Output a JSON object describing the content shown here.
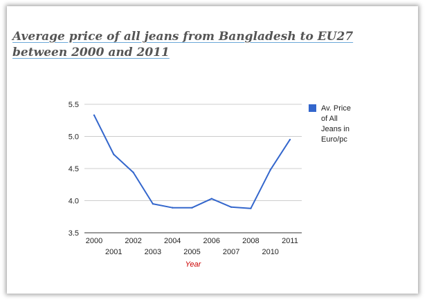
{
  "chart_data": {
    "type": "line",
    "title": "Average price of all jeans from Bangladesh to EU27 between 2000 and 2011",
    "xlabel": "Year",
    "ylabel": "",
    "categories": [
      "2000",
      "2001",
      "2002",
      "2003",
      "2004",
      "2005",
      "2006",
      "2007",
      "2008",
      "2010",
      "2011"
    ],
    "series": [
      {
        "name": "Av. Price of All Jeans in Euro/pc",
        "values": [
          5.33,
          4.72,
          4.44,
          3.95,
          3.89,
          3.89,
          4.03,
          3.9,
          3.88,
          4.48,
          4.95
        ]
      }
    ],
    "ylim": [
      3.5,
      5.5
    ],
    "yticks": [
      "3.5",
      "4.0",
      "4.5",
      "5.0",
      "5.5"
    ],
    "legend_lines": [
      "Av. Price",
      "of All",
      "Jeans in",
      "Euro/pc"
    ],
    "legend_position": "right",
    "grid": true,
    "colors": {
      "series": "#3366cc",
      "xlabel": "#cc0000",
      "grid": "#cccccc",
      "axis": "#333333"
    }
  }
}
